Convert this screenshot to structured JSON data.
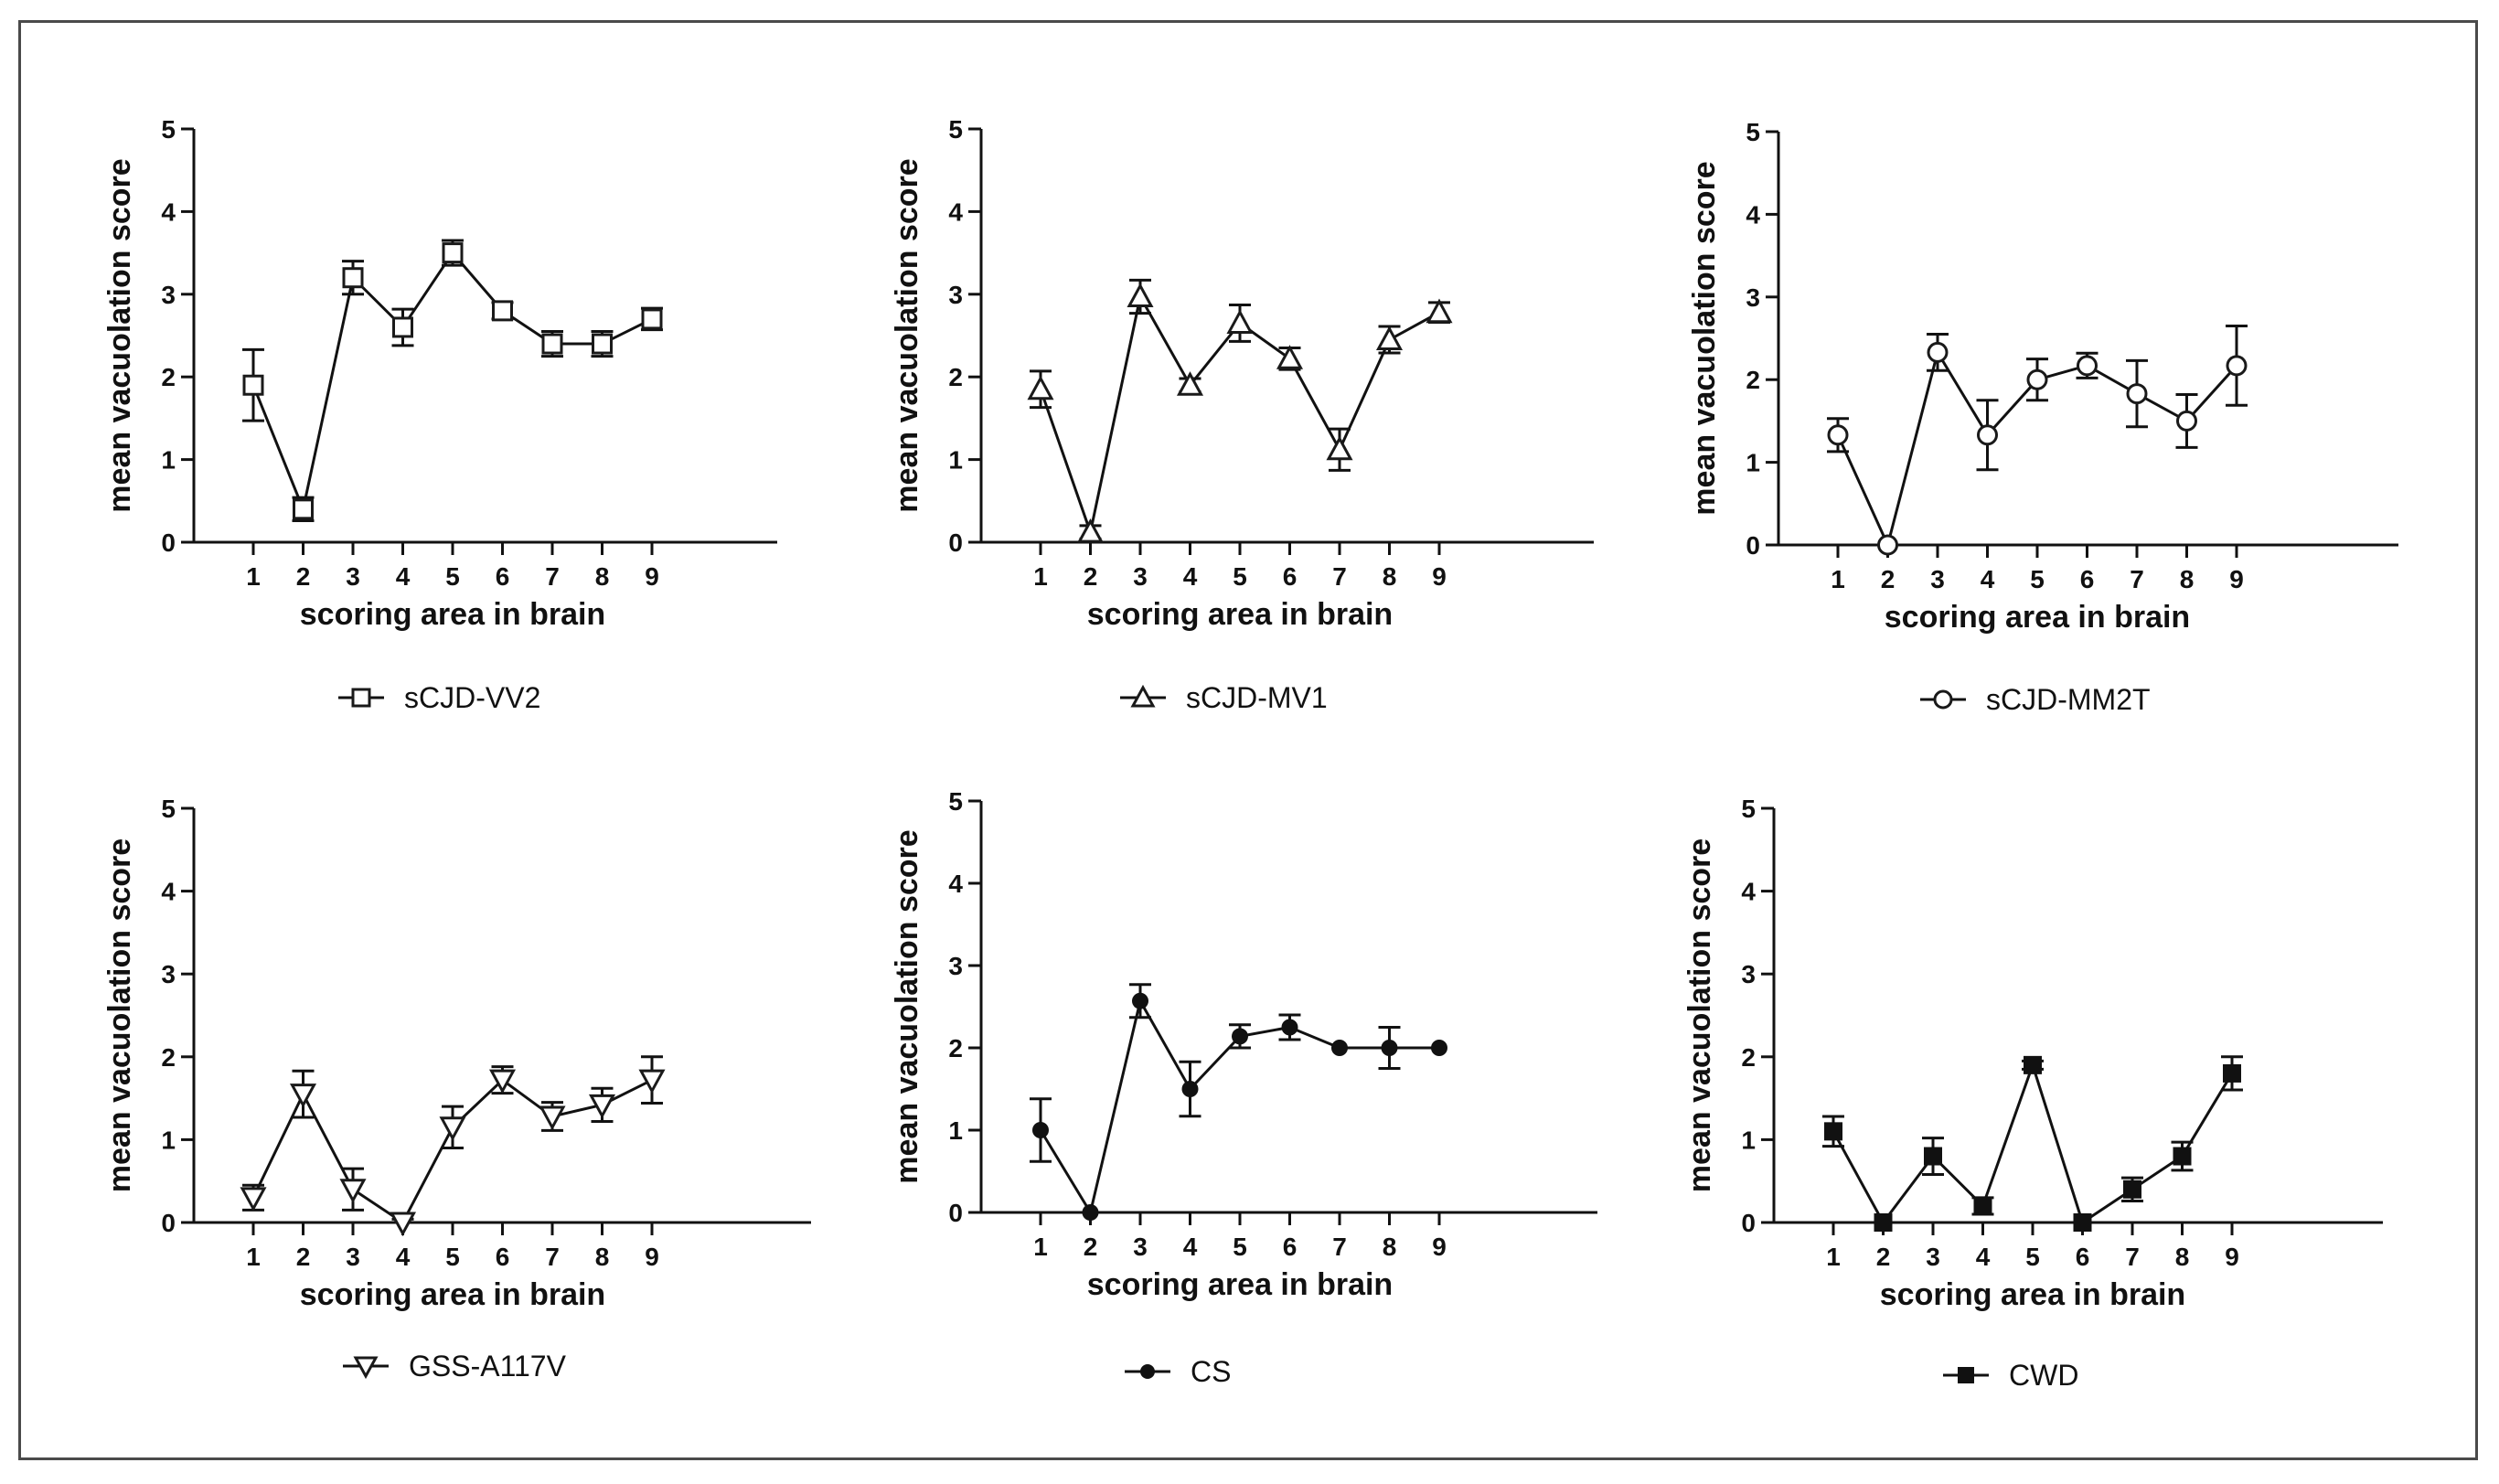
{
  "chart_data": [
    {
      "type": "line",
      "title": "",
      "xlabel": "scoring area in brain",
      "ylabel": "mean vacuolation score",
      "x": [
        1,
        2,
        3,
        4,
        5,
        6,
        7,
        8,
        9
      ],
      "ylim": [
        0,
        5
      ],
      "yticks": [
        0,
        1,
        2,
        3,
        4,
        5
      ],
      "legend": "sCJD-VV2",
      "marker": "square-open",
      "series": [
        {
          "name": "sCJD-VV2",
          "values": [
            1.9,
            0.4,
            3.2,
            2.6,
            3.5,
            2.8,
            2.4,
            2.4,
            2.7
          ],
          "errors": [
            0.43,
            0.14,
            0.2,
            0.22,
            0.15,
            0.1,
            0.15,
            0.15,
            0.13
          ]
        }
      ]
    },
    {
      "type": "line",
      "title": "",
      "xlabel": "scoring area in brain",
      "ylabel": "mean vacuolation score",
      "x": [
        1,
        2,
        3,
        4,
        5,
        6,
        7,
        8,
        9
      ],
      "ylim": [
        0,
        5
      ],
      "yticks": [
        0,
        1,
        2,
        3,
        4,
        5
      ],
      "legend": "sCJD-MV1",
      "marker": "triangle-up-open",
      "series": [
        {
          "name": "sCJD-MV1",
          "values": [
            1.85,
            0.12,
            2.97,
            1.9,
            2.65,
            2.22,
            1.12,
            2.45,
            2.78
          ],
          "errors": [
            0.22,
            0.08,
            0.2,
            0.08,
            0.22,
            0.13,
            0.25,
            0.16,
            0.12
          ]
        }
      ]
    },
    {
      "type": "line",
      "title": "",
      "xlabel": "scoring area in brain",
      "ylabel": "mean vacuolation score",
      "x": [
        1,
        2,
        3,
        4,
        5,
        6,
        7,
        8,
        9
      ],
      "ylim": [
        0,
        5
      ],
      "yticks": [
        0,
        1,
        2,
        3,
        4,
        5
      ],
      "legend": "sCJD-MM2T",
      "marker": "circle-open",
      "series": [
        {
          "name": "sCJD-MM2T",
          "values": [
            1.33,
            0.0,
            2.33,
            1.33,
            2.0,
            2.17,
            1.83,
            1.5,
            2.17
          ],
          "errors": [
            0.2,
            0.0,
            0.22,
            0.42,
            0.25,
            0.15,
            0.4,
            0.32,
            0.48
          ]
        }
      ]
    },
    {
      "type": "line",
      "title": "",
      "xlabel": "scoring area in brain",
      "ylabel": "mean vacuolation score",
      "x": [
        1,
        2,
        3,
        4,
        5,
        6,
        7,
        8,
        9
      ],
      "ylim": [
        0,
        5
      ],
      "yticks": [
        0,
        1,
        2,
        3,
        4,
        5
      ],
      "legend": "GSS-A117V",
      "marker": "triangle-down-open",
      "series": [
        {
          "name": "GSS-A117V",
          "values": [
            0.3,
            1.55,
            0.4,
            0.0,
            1.15,
            1.72,
            1.28,
            1.42,
            1.72
          ],
          "errors": [
            0.15,
            0.28,
            0.25,
            0.04,
            0.25,
            0.16,
            0.17,
            0.2,
            0.28
          ]
        }
      ]
    },
    {
      "type": "line",
      "title": "",
      "xlabel": "scoring area in brain",
      "ylabel": "mean vacuolation score",
      "x": [
        1,
        2,
        3,
        4,
        5,
        6,
        7,
        8,
        9
      ],
      "ylim": [
        0,
        5
      ],
      "yticks": [
        0,
        1,
        2,
        3,
        4,
        5
      ],
      "legend": "CS",
      "marker": "circle-filled",
      "series": [
        {
          "name": "CS",
          "values": [
            1.0,
            0.0,
            2.57,
            1.5,
            2.14,
            2.25,
            2.0,
            2.0,
            2.0
          ],
          "errors": [
            0.38,
            0.0,
            0.2,
            0.33,
            0.14,
            0.15,
            0.0,
            0.25,
            0.0
          ]
        }
      ]
    },
    {
      "type": "line",
      "title": "",
      "xlabel": "scoring area in brain",
      "ylabel": "mean vacuolation score",
      "x": [
        1,
        2,
        3,
        4,
        5,
        6,
        7,
        8,
        9
      ],
      "ylim": [
        0,
        5
      ],
      "yticks": [
        0,
        1,
        2,
        3,
        4,
        5
      ],
      "legend": "CWD",
      "marker": "square-filled",
      "series": [
        {
          "name": "CWD",
          "values": [
            1.1,
            0.0,
            0.8,
            0.2,
            1.9,
            0.0,
            0.4,
            0.8,
            1.8
          ],
          "errors": [
            0.18,
            0.0,
            0.22,
            0.1,
            0.05,
            0.0,
            0.14,
            0.17,
            0.2
          ]
        }
      ]
    }
  ]
}
